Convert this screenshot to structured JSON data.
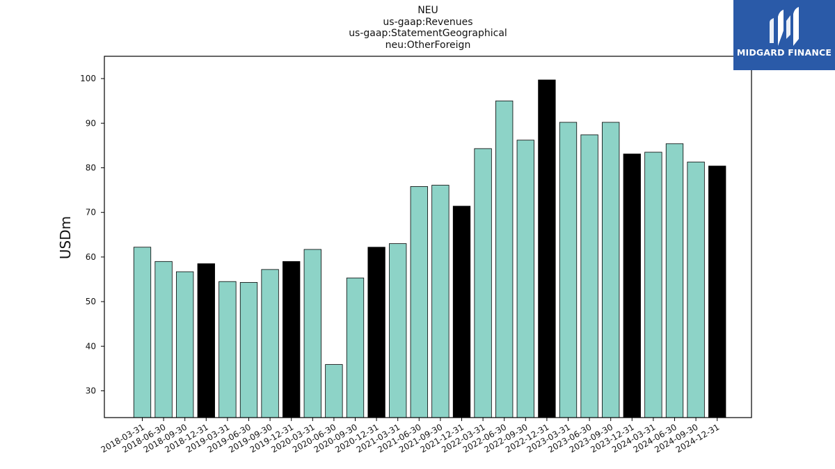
{
  "chart_data": {
    "type": "bar",
    "title_lines": [
      "NEU",
      "us-gaap:Revenues",
      "us-gaap:StatementGeographical",
      "neu:OtherForeign"
    ],
    "ylabel": "USDm",
    "xlabel": "",
    "ylim": [
      24,
      105
    ],
    "yticks": [
      30,
      40,
      50,
      60,
      70,
      80,
      90,
      100
    ],
    "grid": false,
    "categories": [
      "2018-03-31",
      "2018-06-30",
      "2018-09-30",
      "2018-12-31",
      "2019-03-31",
      "2019-06-30",
      "2019-09-30",
      "2019-12-31",
      "2020-03-31",
      "2020-06-30",
      "2020-09-30",
      "2020-12-31",
      "2021-03-31",
      "2021-06-30",
      "2021-09-30",
      "2021-12-31",
      "2022-03-31",
      "2022-06-30",
      "2022-09-30",
      "2022-12-31",
      "2023-03-31",
      "2023-06-30",
      "2023-09-30",
      "2023-12-31",
      "2024-03-31",
      "2024-06-30",
      "2024-09-30",
      "2024-12-31"
    ],
    "values": [
      62.2,
      59.0,
      56.7,
      58.5,
      54.5,
      54.3,
      57.2,
      59.0,
      61.7,
      35.9,
      55.3,
      62.2,
      63.0,
      75.8,
      76.1,
      71.4,
      84.3,
      95.0,
      86.2,
      99.7,
      90.2,
      87.4,
      90.2,
      83.1,
      83.5,
      85.4,
      81.3,
      80.4
    ],
    "highlight_pattern": [
      "q",
      "q",
      "q",
      "fy",
      "q",
      "q",
      "q",
      "fy",
      "q",
      "q",
      "q",
      "fy",
      "q",
      "q",
      "q",
      "fy",
      "q",
      "q",
      "q",
      "fy",
      "q",
      "q",
      "q",
      "fy",
      "q",
      "q",
      "q",
      "fy"
    ],
    "colors": {
      "quarter": "#8dd3c7",
      "year_end": "#000000",
      "edge": "#000000"
    }
  },
  "logo": {
    "text": "MIDGARD FINANCE",
    "background": "#2a5aa8"
  }
}
